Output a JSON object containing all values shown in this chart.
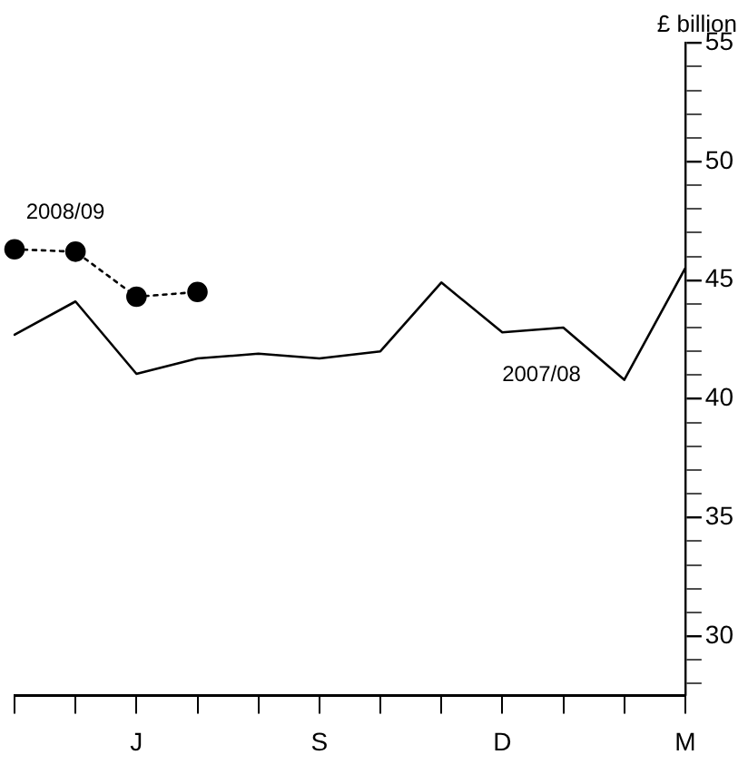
{
  "chart_data": {
    "type": "line",
    "ylabel": "£ billion",
    "categories": [
      null,
      null,
      "J",
      null,
      null,
      "S",
      null,
      null,
      "D",
      null,
      null,
      "M"
    ],
    "series": [
      {
        "name": "2007/08",
        "color": "#000000",
        "marker": "none",
        "line_style": "solid",
        "values": [
          42.7,
          44.1,
          41.05,
          41.7,
          41.9,
          41.7,
          42.0,
          44.9,
          42.8,
          43.0,
          40.8,
          45.5
        ]
      },
      {
        "name": "2008/09",
        "color": "#000000",
        "marker": "circle",
        "line_style": "dotted",
        "values": [
          46.3,
          46.2,
          44.3,
          44.5,
          null,
          null,
          null,
          null,
          null,
          null,
          null,
          null
        ]
      }
    ],
    "ylim": [
      27.5,
      55
    ],
    "yticks": [
      {
        "value": 28,
        "label": null
      },
      {
        "value": 29,
        "label": null
      },
      30,
      {
        "value": 31,
        "label": null
      },
      {
        "value": 32,
        "label": null
      },
      {
        "value": 33,
        "label": null
      },
      {
        "value": 34,
        "label": null
      },
      35,
      {
        "value": 36,
        "label": null
      },
      {
        "value": 37,
        "label": null
      },
      {
        "value": 38,
        "label": null
      },
      {
        "value": 39,
        "label": null
      },
      40,
      {
        "value": 41,
        "label": null
      },
      {
        "value": 42,
        "label": null
      },
      {
        "value": 43,
        "label": null
      },
      {
        "value": 44,
        "label": null
      },
      45,
      {
        "value": 46,
        "label": null
      },
      {
        "value": 47,
        "label": null
      },
      {
        "value": 48,
        "label": null
      },
      {
        "value": 49,
        "label": null
      },
      50,
      {
        "value": 51,
        "label": null
      },
      {
        "value": 52,
        "label": null
      },
      {
        "value": 53,
        "label": null
      },
      {
        "value": 54,
        "label": null
      },
      55
    ],
    "grid": false,
    "legend": false
  }
}
